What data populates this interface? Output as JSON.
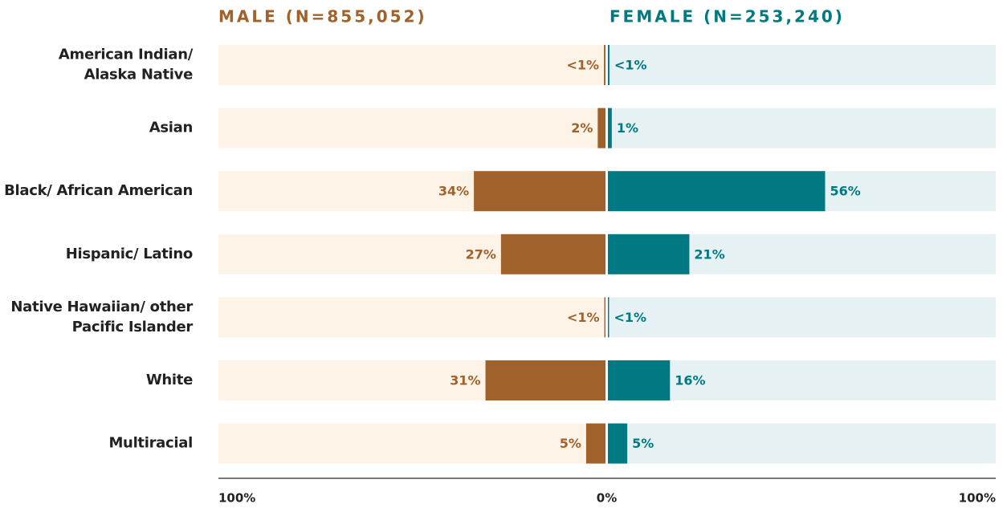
{
  "chart_data": {
    "type": "diverging-bar",
    "categories": [
      [
        "American Indian/",
        "Alaska Native"
      ],
      [
        "Asian"
      ],
      [
        "Black/ African American"
      ],
      [
        "Hispanic/ Latino"
      ],
      [
        "Native Hawaiian/ other",
        "Pacific Islander"
      ],
      [
        "White"
      ],
      [
        "Multiracial"
      ]
    ],
    "series": [
      {
        "name": "MALE (N=855,052)",
        "color": "#a0612a",
        "track_color": "#fdf3e6",
        "values": [
          0.4,
          2,
          34,
          27,
          0.3,
          31,
          5
        ],
        "value_labels": [
          "<1%",
          "2%",
          "34%",
          "27%",
          "<1%",
          "31%",
          "5%"
        ]
      },
      {
        "name": "FEMALE (N=253,240)",
        "color": "#007983",
        "track_color": "#e5f1f3",
        "values": [
          0.4,
          1,
          56,
          21,
          0.3,
          16,
          5
        ],
        "value_labels": [
          "<1%",
          "1%",
          "56%",
          "21%",
          "<1%",
          "16%",
          "5%"
        ]
      }
    ],
    "xlim": [
      -100,
      100
    ],
    "xticks": [
      {
        "value": -100,
        "label": "100%"
      },
      {
        "value": 0,
        "label": "0%"
      },
      {
        "value": 100,
        "label": "100%"
      }
    ]
  }
}
